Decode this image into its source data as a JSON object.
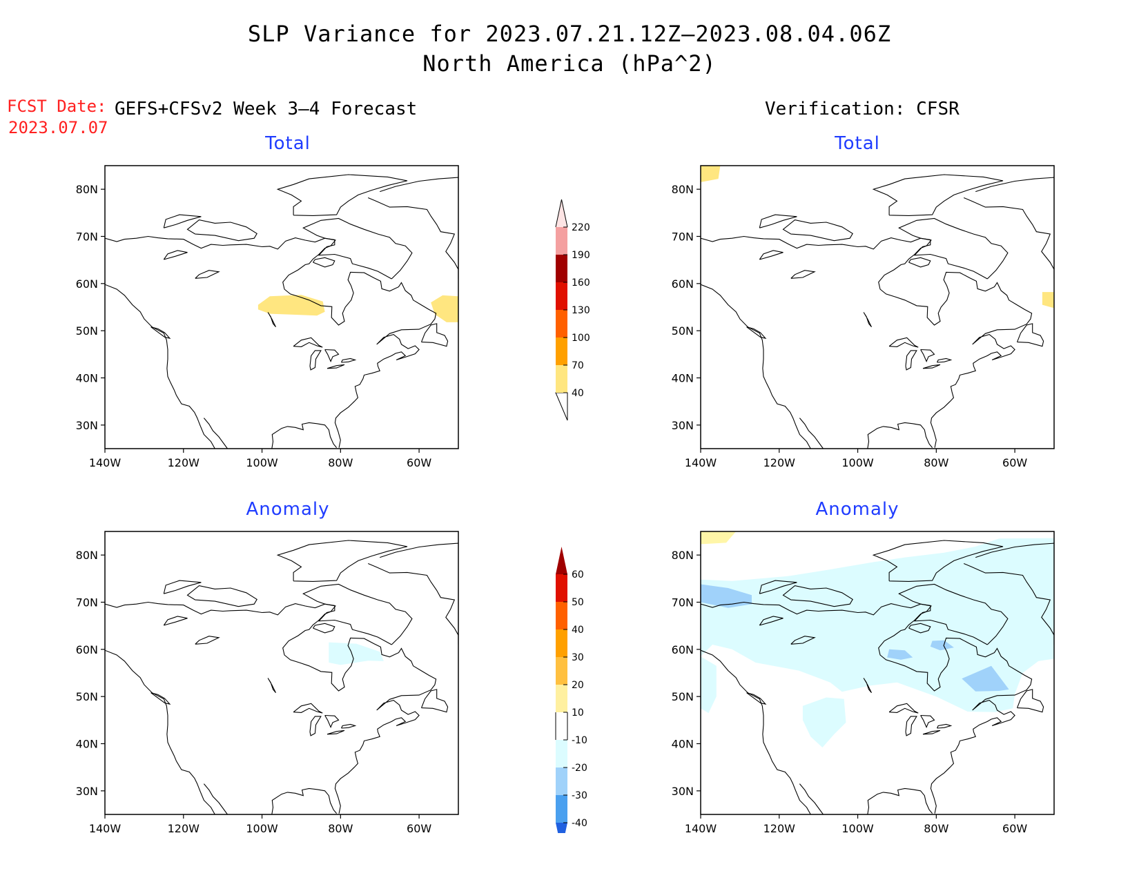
{
  "title": {
    "line1": "SLP Variance for 2023.07.21.12Z–2023.08.04.06Z",
    "line2": "North America (hPa^2)"
  },
  "forecast_date": {
    "label": "FCST Date:",
    "value": "2023.07.07"
  },
  "left_header": "GEFS+CFSv2 Week 3–4 Forecast",
  "right_header": "Verification: CFSR",
  "panels": [
    {
      "title": "Total",
      "shading": "total_forecast"
    },
    {
      "title": "Total",
      "shading": "total_verification"
    },
    {
      "title": "Anomaly",
      "shading": "anomaly_forecast"
    },
    {
      "title": "Anomaly",
      "shading": "anomaly_verification"
    }
  ],
  "axes": {
    "lat_labels": [
      "80N",
      "70N",
      "60N",
      "50N",
      "40N",
      "30N"
    ],
    "lat_values": [
      80,
      70,
      60,
      50,
      40,
      30
    ],
    "lon_labels": [
      "140W",
      "120W",
      "100W",
      "80W",
      "60W"
    ],
    "lon_values": [
      -140,
      -120,
      -100,
      -80,
      -60
    ],
    "lat_range": [
      25,
      85
    ],
    "lon_range": [
      -140,
      -50
    ]
  },
  "total_colorbar": {
    "levels": [
      "40",
      "70",
      "100",
      "130",
      "160",
      "190",
      "220"
    ],
    "colors": [
      "#ffe680",
      "#ffa000",
      "#ff6000",
      "#e01000",
      "#a00000",
      "#f4a0a0",
      "#fde4e4"
    ]
  },
  "anomaly_colorbar": {
    "levels": [
      "60",
      "50",
      "40",
      "30",
      "20",
      "10",
      "-10",
      "-20",
      "-30",
      "-40"
    ],
    "colors": [
      "#a00000",
      "#e01000",
      "#ff6000",
      "#ffa000",
      "#ffc040",
      "#fff0a0",
      "#ffffff",
      "#dcfcff",
      "#a0d2fa",
      "#4aa0ef",
      "#2060e0"
    ]
  },
  "colors": {
    "light_yellow": "#ffe680",
    "pale_yellow": "#fff6a8",
    "light_cyan": "#dcfcff",
    "light_blue": "#a0d2fa",
    "title_blue": "#1f3cff",
    "fcst_red": "#ff2020"
  }
}
